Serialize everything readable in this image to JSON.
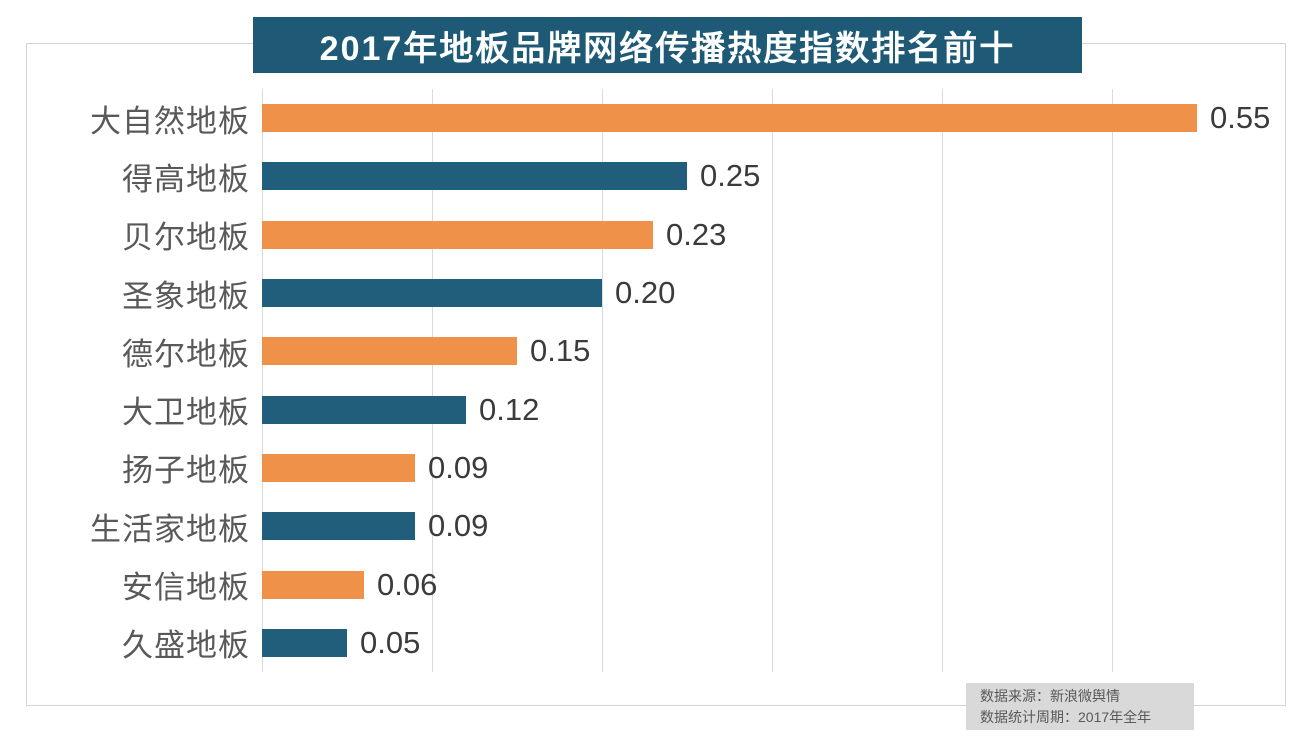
{
  "chart_data": {
    "type": "bar",
    "orientation": "horizontal",
    "title": "2017年地板品牌网络传播热度指数排名前十",
    "categories": [
      "大自然地板",
      "得高地板",
      "贝尔地板",
      "圣象地板",
      "德尔地板",
      "大卫地板",
      "扬子地板",
      "生活家地板",
      "安信地板",
      "久盛地板"
    ],
    "values": [
      0.55,
      0.25,
      0.23,
      0.2,
      0.15,
      0.12,
      0.09,
      0.09,
      0.06,
      0.05
    ],
    "value_labels": [
      "0.55",
      "0.25",
      "0.23",
      "0.20",
      "0.15",
      "0.12",
      "0.09",
      "0.09",
      "0.06",
      "0.05"
    ],
    "bar_colors": [
      "#EF9148",
      "#215E7C"
    ],
    "xlabel": "",
    "ylabel": "",
    "xlim": [
      0,
      0.6
    ],
    "x_gridline_values": [
      0,
      0.1,
      0.2,
      0.3,
      0.4,
      0.5
    ],
    "grid": true,
    "legend": false,
    "data_labels": "outside-end"
  },
  "footer": {
    "line1": "数据来源：新浪微舆情",
    "line2": "数据统计周期：2017年全年"
  },
  "colors": {
    "banner_bg": "#1E5A76",
    "bar_orange": "#EF9148",
    "bar_teal": "#215E7C",
    "gridline": "#DADADA",
    "frame_border": "#D4D4D4",
    "category_label": "#595959",
    "value_label": "#3B3B3B",
    "footer_bg": "#D9D9D9",
    "footer_text": "#595959",
    "title_text": "#FFFFFF"
  }
}
